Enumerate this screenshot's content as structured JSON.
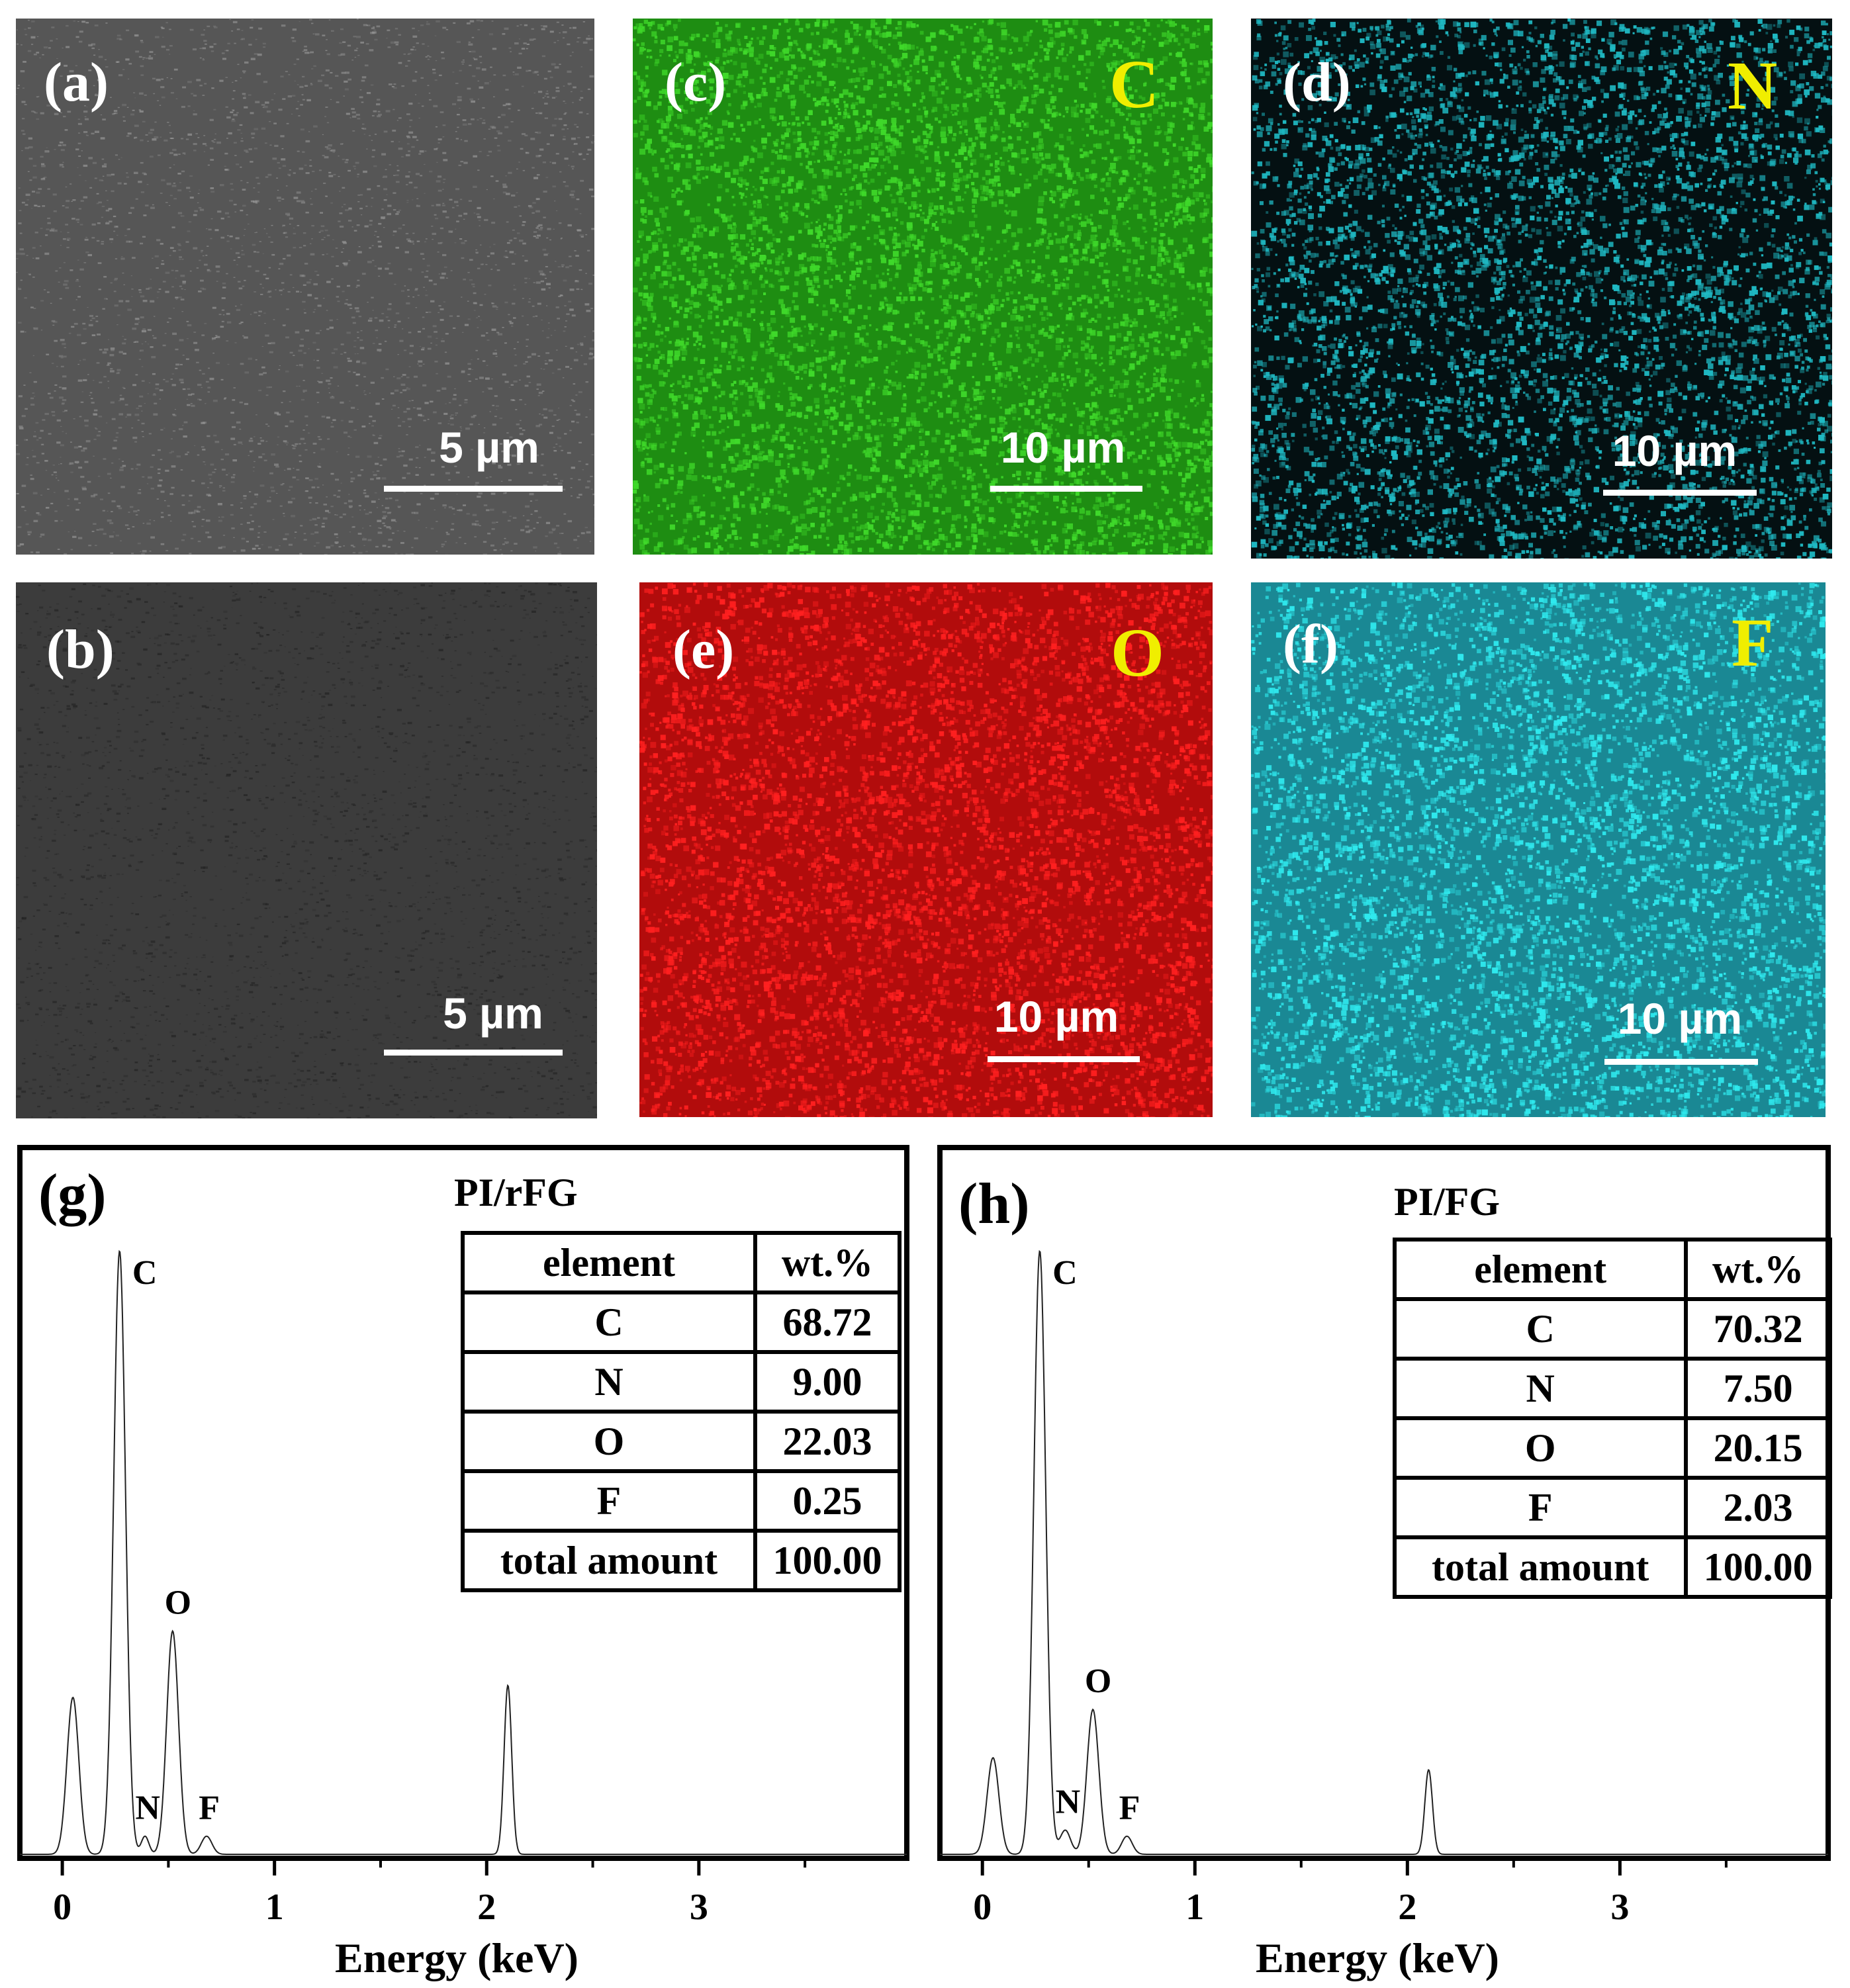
{
  "image_panels": [
    {
      "id": "a",
      "label": "(a)",
      "element": "",
      "scale": "5 µm",
      "kind": "sem",
      "base": "#565656",
      "dot": "#9a9a9a",
      "seed": 11
    },
    {
      "id": "b",
      "label": "(b)",
      "element": "",
      "scale": "5 µm",
      "kind": "sem",
      "base": "#3c3c3c",
      "dot": "#232323",
      "seed": 23
    },
    {
      "id": "c",
      "label": "(c)",
      "element": "C",
      "scale": "10 µm",
      "kind": "map",
      "base": "#1e8d12",
      "dot": "#3fd92a",
      "seed": 37
    },
    {
      "id": "d",
      "label": "(d)",
      "element": "N",
      "scale": "10 µm",
      "kind": "map",
      "base": "#041012",
      "dot": "#1fb9c3",
      "seed": 41
    },
    {
      "id": "e",
      "label": "(e)",
      "element": "O",
      "scale": "10 µm",
      "kind": "map",
      "base": "#b20c0c",
      "dot": "#ff2020",
      "seed": 53
    },
    {
      "id": "f",
      "label": "(f)",
      "element": "F",
      "scale": "10 µm",
      "kind": "map",
      "base": "#1a8894",
      "dot": "#2fe9ee",
      "seed": 67
    }
  ],
  "chart_data": [
    {
      "type": "line",
      "panel": "(g)",
      "title": "PI/rFG",
      "xlabel": "Energy (keV)",
      "ylabel": "",
      "xlim": [
        -0.2,
        3.98
      ],
      "x_ticks": [
        0,
        1,
        2,
        3
      ],
      "peaks": [
        {
          "energy": 0.05,
          "height": 0.26,
          "width": 0.028
        },
        {
          "energy": 0.27,
          "height": 1.0,
          "width": 0.028
        },
        {
          "energy": 0.39,
          "height": 0.03,
          "width": 0.018
        },
        {
          "energy": 0.52,
          "height": 0.37,
          "width": 0.028
        },
        {
          "energy": 0.68,
          "height": 0.03,
          "width": 0.025
        },
        {
          "energy": 2.1,
          "height": 0.28,
          "width": 0.018
        }
      ],
      "peak_labels": [
        {
          "text": "C",
          "energy": 0.27
        },
        {
          "text": "N",
          "energy": 0.39
        },
        {
          "text": "O",
          "energy": 0.52
        },
        {
          "text": "F",
          "energy": 0.68
        }
      ],
      "table": {
        "headers": [
          "element",
          "wt.%"
        ],
        "rows": [
          [
            "C",
            "68.72"
          ],
          [
            "N",
            "9.00"
          ],
          [
            "O",
            "22.03"
          ],
          [
            "F",
            "0.25"
          ],
          [
            "total amount",
            "100.00"
          ]
        ]
      }
    },
    {
      "type": "line",
      "panel": "(h)",
      "title": "PI/FG",
      "xlabel": "Energy (keV)",
      "ylabel": "",
      "xlim": [
        -0.2,
        3.98
      ],
      "x_ticks": [
        0,
        1,
        2,
        3
      ],
      "peaks": [
        {
          "energy": 0.05,
          "height": 0.16,
          "width": 0.028
        },
        {
          "energy": 0.27,
          "height": 1.0,
          "width": 0.028
        },
        {
          "energy": 0.39,
          "height": 0.04,
          "width": 0.025
        },
        {
          "energy": 0.52,
          "height": 0.24,
          "width": 0.028
        },
        {
          "energy": 0.68,
          "height": 0.03,
          "width": 0.025
        },
        {
          "energy": 2.1,
          "height": 0.14,
          "width": 0.018
        }
      ],
      "peak_labels": [
        {
          "text": "C",
          "energy": 0.27
        },
        {
          "text": "N",
          "energy": 0.39
        },
        {
          "text": "O",
          "energy": 0.52
        },
        {
          "text": "F",
          "energy": 0.68
        }
      ],
      "table": {
        "headers": [
          "element",
          "wt.%"
        ],
        "rows": [
          [
            "C",
            "70.32"
          ],
          [
            "N",
            "7.50"
          ],
          [
            "O",
            "20.15"
          ],
          [
            "F",
            "2.03"
          ],
          [
            "total amount",
            "100.00"
          ]
        ]
      }
    }
  ]
}
